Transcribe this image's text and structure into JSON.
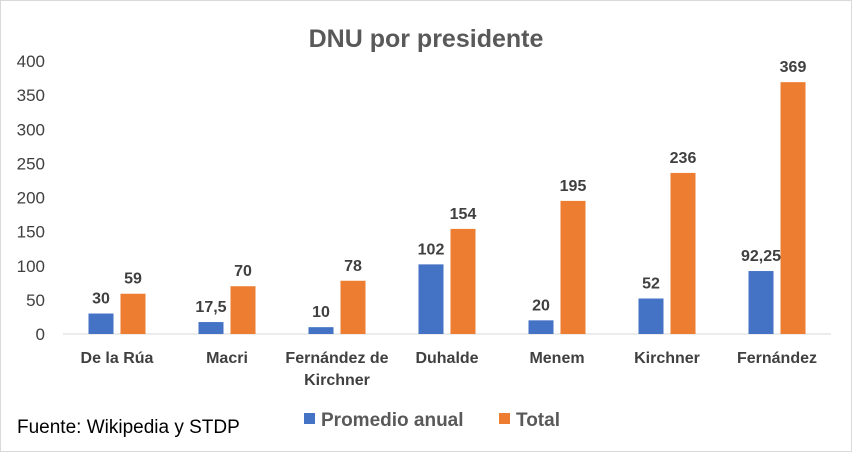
{
  "chart_data": {
    "type": "bar",
    "title": "DNU por presidente",
    "categories": [
      "De la Rúa",
      "Macri",
      "Fernández de Kirchner",
      "Duhalde",
      "Menem",
      "Kirchner",
      "Fernández"
    ],
    "category_lines": [
      [
        "De la Rúa"
      ],
      [
        "Macri"
      ],
      [
        "Fernández de",
        "Kirchner"
      ],
      [
        "Duhalde"
      ],
      [
        "Menem"
      ],
      [
        "Kirchner"
      ],
      [
        "Fernández"
      ]
    ],
    "series": [
      {
        "name": "Promedio anual",
        "color": "#4472c4",
        "values": [
          30,
          17.5,
          10,
          102,
          20,
          52,
          92.25
        ],
        "labels": [
          "30",
          "17,5",
          "10",
          "102",
          "20",
          "52",
          "92,25"
        ]
      },
      {
        "name": "Total",
        "color": "#ed7d31",
        "values": [
          59,
          70,
          78,
          154,
          195,
          236,
          369
        ],
        "labels": [
          "59",
          "70",
          "78",
          "154",
          "195",
          "236",
          "369"
        ]
      }
    ],
    "ylim": [
      0,
      400
    ],
    "yticks": [
      0,
      50,
      100,
      150,
      200,
      250,
      300,
      350,
      400
    ],
    "grid": false,
    "legend": "bottom"
  },
  "source": "Fuente: Wikipedia  y STDP"
}
